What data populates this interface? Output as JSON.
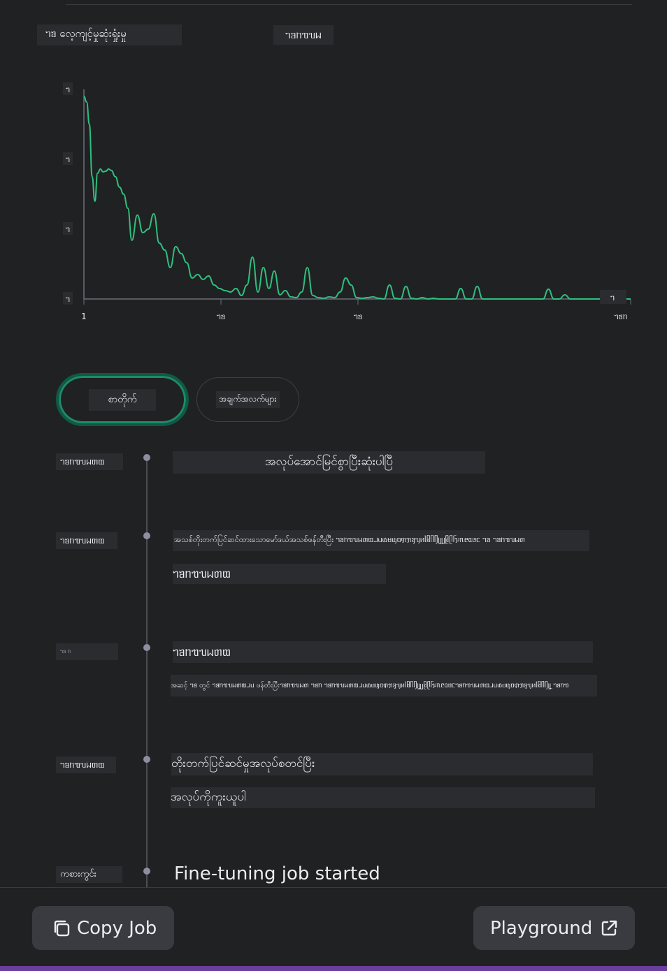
{
  "chart_data": {
    "type": "line",
    "title": "ᥐᥑ လေ့ကျင့်မှုဆုံးရှုံးမှု",
    "subtitle": "ᥐᥑᥒᥓᥔᥕ",
    "xlabel": "",
    "ylabel": "",
    "xlim": [
      1,
      400
    ],
    "ylim": [
      0,
      3
    ],
    "x_ticks": [
      "1",
      "ᥐᥑ",
      "ᥐᥑ",
      "ᥐᥑᥒ"
    ],
    "y_ticks": [
      "ᥐ",
      "ᥐ",
      "ᥐ",
      "ᥐ"
    ],
    "end_label": "ᥐ",
    "color": "#2fbf7f",
    "series": [
      {
        "name": "training loss",
        "x": [
          1,
          3,
          5,
          7,
          9,
          11,
          13,
          15,
          17,
          19,
          21,
          24,
          27,
          30,
          33,
          36,
          40,
          44,
          48,
          52,
          56,
          60,
          64,
          68,
          72,
          76,
          80,
          84,
          88,
          92,
          96,
          100,
          104,
          108,
          112,
          116,
          120,
          124,
          128,
          132,
          136,
          140,
          144,
          148,
          152,
          156,
          160,
          164,
          168,
          172,
          176,
          180,
          184,
          188,
          192,
          196,
          200,
          204,
          208,
          212,
          216,
          220,
          224,
          228,
          232,
          236,
          240,
          244,
          248,
          252,
          256,
          260,
          264,
          268,
          272,
          276,
          280,
          284,
          288,
          292,
          296,
          300,
          304,
          308,
          312,
          316,
          320,
          324,
          328,
          332,
          336,
          340,
          344,
          348,
          352,
          356,
          360,
          364,
          368,
          372,
          376,
          380,
          384,
          388,
          392,
          396,
          400
        ],
        "values": [
          2.9,
          2.82,
          2.5,
          1.75,
          1.4,
          1.8,
          1.86,
          1.82,
          1.83,
          1.86,
          1.84,
          1.75,
          1.6,
          1.5,
          1.3,
          0.84,
          1.2,
          0.95,
          1.0,
          1.22,
          0.8,
          0.7,
          0.45,
          0.75,
          0.65,
          0.52,
          0.3,
          0.35,
          0.28,
          0.33,
          0.2,
          0.15,
          0.12,
          0.1,
          0.15,
          0.05,
          0.2,
          0.6,
          0.1,
          0.45,
          0.15,
          0.4,
          0.06,
          0.12,
          0.03,
          0.02,
          0.1,
          0.45,
          0.05,
          0.02,
          0.01,
          0.03,
          0.02,
          0.1,
          0.3,
          0.2,
          0.02,
          0.01,
          0.02,
          0.03,
          0.01,
          0.0,
          0.2,
          0.01,
          0.0,
          0.18,
          0.01,
          0.0,
          0.02,
          0.0,
          0.01,
          0.0,
          0.0,
          0.0,
          0.0,
          0.15,
          0.0,
          0.0,
          0.18,
          0.0,
          0.0,
          0.0,
          0.0,
          0.0,
          0.0,
          0.0,
          0.0,
          0.0,
          0.0,
          0.0,
          0.0,
          0.14,
          0.0,
          0.0,
          0.06,
          0.0,
          0.0,
          0.0,
          0.0,
          0.0,
          0.0,
          0.0,
          0.0,
          0.0,
          0.0,
          0.0,
          0.0
        ]
      }
    ]
  },
  "tabs": [
    {
      "label": "စာတိုက်",
      "active": true
    },
    {
      "label": "အချက်အလက်များ",
      "active": false
    }
  ],
  "events": [
    {
      "timestamp": "ᥐᥑᥒᥓᥔᥕᥖᥗ",
      "lines": [
        "အလုပ်အောင်မြင်စွာပြီးဆုံးပါပြီ"
      ]
    },
    {
      "timestamp": "ᥐᥑᥒᥓᥔᥕᥖᥗ",
      "lines": [
        "အသစ်တိုးတက်ပြင်ဆင်ထားသောမော်ဒယ်အသစ်ဖန်တီးပြီး ᥐᥑᥒᥓᥔᥕᥖᥗᥘᥙᥚᥛᥜᥝᥞᥟᥠᥡᥢᥣᥤᥥᥦᥧᥨᥩᥪᥫᥬᥭᥰᥱᥲᥳᥴ ᥐᥑ ᥐᥑᥒᥓᥔᥕᥖ",
        "ᥐᥑᥒᥓᥔᥕᥖᥗ"
      ]
    },
    {
      "timestamp": "ᥐᥑ ᥒ",
      "lines": [
        "ᥐᥑᥒᥓᥔᥕᥖᥗ",
        "အဆင့် ᥐᥑ တွင် ᥐᥑᥒᥓᥔᥕᥖᥗᥘᥙ ဖန်တီးပြီးᥐᥑᥒᥓᥔᥕᥖ ᥐᥑᥒ ᥐᥑᥒᥓᥔᥕᥖᥗᥘᥙᥚᥛᥜᥝᥞᥟᥠᥡᥢᥣᥤᥥᥦᥧᥨᥩᥪᥫᥬᥭᥰᥱᥲᥳᥴᥐᥑᥒᥓᥔᥕᥖᥗᥘᥙᥚᥛᥜᥝᥞᥟᥠᥡᥢᥣᥤᥥᥦᥧᥨ ᥐᥑᥒᥓ"
      ]
    },
    {
      "timestamp": "ᥐᥑᥒᥓᥔᥕᥖᥗ",
      "lines": [
        "တိုးတက်ပြင်ဆင်မှုအလုပ်စတင်ပြီး",
        "အလုပ်ကိုကူးယူပါ"
      ]
    },
    {
      "timestamp": "ကစားကွင်း",
      "lines": [
        "Fine-tuning job started"
      ]
    }
  ],
  "footer": {
    "copy_label": "Copy Job",
    "playground_label": "Playground"
  },
  "colors": {
    "accent": "#2fbf7f",
    "background": "#202123",
    "panel": "#2b2c30"
  }
}
